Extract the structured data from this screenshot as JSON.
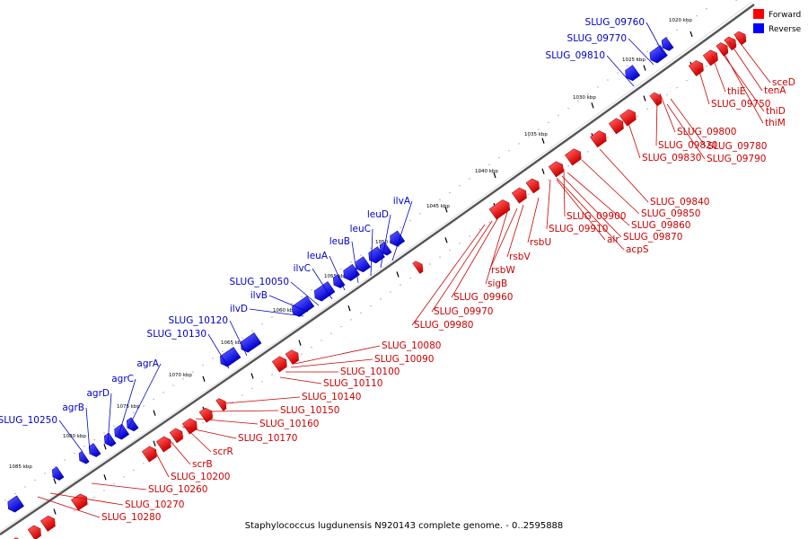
{
  "caption": "Staphylococcus lugdunensis N920143 complete genome. - 0..2595888",
  "legend": [
    {
      "label": "Forward",
      "color": "#ff0000"
    },
    {
      "label": "Reverse",
      "color": "#0000ff"
    }
  ],
  "colors": {
    "forward": "#e41a1c",
    "reverse": "#1010ee",
    "forward_label": "#cc0000",
    "reverse_label": "#0000cc",
    "backbone": "#555555"
  },
  "kbp_ticks": [
    "1020 kbp",
    "1025 kbp",
    "1030 kbp",
    "1035 kbp",
    "1040 kbp",
    "1045 kbp",
    "1050 kbp",
    "1055 kbp",
    "1060 kbp",
    "1065 kbp",
    "1070 kbp",
    "1075 kbp",
    "1080 kbp",
    "1085 kbp"
  ],
  "reverse_genes": [
    "SLUG_09760",
    "SLUG_09770",
    "SLUG_09810",
    "ilvA",
    "leuD",
    "leuC",
    "leuB",
    "leuA",
    "ilvC",
    "SLUG_10050",
    "ilvB",
    "ilvD",
    "SLUG_10120",
    "SLUG_10130",
    "agrA",
    "agrC",
    "agrD",
    "agrB",
    "SLUG_10250"
  ],
  "forward_genes": [
    "sceD",
    "tenA",
    "thiE",
    "thiD",
    "SLUG_09750",
    "thiM",
    "SLUG_09800",
    "SLUG_09820",
    "SLUG_09780",
    "SLUG_09830",
    "SLUG_09790",
    "SLUG_09840",
    "SLUG_09850",
    "SLUG_09900",
    "SLUG_09860",
    "SLUG_09910",
    "SLUG_09870",
    "alr",
    "acpS",
    "rsbU",
    "rsbV",
    "rsbW",
    "sigB",
    "SLUG_09960",
    "SLUG_09970",
    "SLUG_09980",
    "SLUG_10080",
    "SLUG_10090",
    "SLUG_10100",
    "SLUG_10110",
    "SLUG_10140",
    "SLUG_10150",
    "SLUG_10160",
    "SLUG_10170",
    "scrR",
    "scrB",
    "SLUG_10200",
    "SLUG_10260",
    "SLUG_10270",
    "SLUG_10280"
  ]
}
